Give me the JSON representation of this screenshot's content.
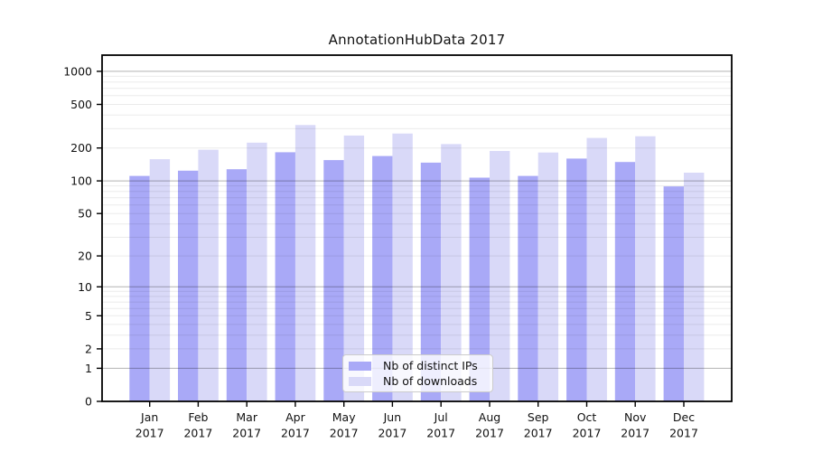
{
  "chart_data": {
    "type": "bar",
    "title": "AnnotationHubData 2017",
    "xlabel": "",
    "ylabel": "",
    "scale": "log1p (log-like y axis with 0 baseline)",
    "categories": [
      "Jan",
      "Feb",
      "Mar",
      "Apr",
      "May",
      "Jun",
      "Jul",
      "Aug",
      "Sep",
      "Oct",
      "Nov",
      "Dec"
    ],
    "x_tick_year": "2017",
    "series": [
      {
        "name": "Nb of distinct IPs",
        "color": "#a9a9f7",
        "values": [
          111,
          124,
          128,
          183,
          155,
          169,
          147,
          107,
          111,
          160,
          149,
          89
        ]
      },
      {
        "name": "Nb of downloads",
        "color": "#d9d9f8",
        "values": [
          158,
          193,
          224,
          324,
          260,
          271,
          217,
          188,
          182,
          247,
          256,
          119
        ]
      }
    ],
    "y_ticks": [
      0,
      1,
      2,
      5,
      10,
      20,
      50,
      100,
      200,
      500,
      1000
    ],
    "ylim": [
      0,
      1400
    ],
    "grid": {
      "major_values": [
        1,
        10,
        100,
        1000
      ],
      "minor_values": [
        2,
        3,
        4,
        5,
        6,
        7,
        8,
        9,
        20,
        30,
        40,
        50,
        60,
        70,
        80,
        90,
        200,
        300,
        400,
        500,
        600,
        700,
        800,
        900
      ],
      "major_rgba": "rgba(0,0,0,0.30)",
      "minor_rgba": "rgba(0,0,0,0.08)"
    },
    "legend_position": "lower center",
    "legend_border_color": "#cccccc",
    "axis_color": "#000000",
    "text_color": "#111111"
  }
}
